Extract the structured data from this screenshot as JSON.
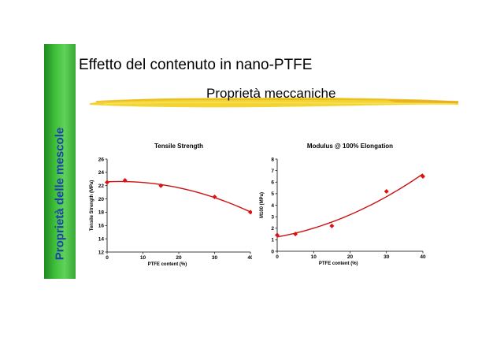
{
  "slide": {
    "title": "Effetto del contenuto in nano-PTFE",
    "section": "Proprietà meccaniche",
    "sidebar": "Proprietà delle mescole",
    "colors": {
      "sidebar_green": "#3fbf3a",
      "sidebar_text": "#1e3fae",
      "brush_yellow": "#f2d22a",
      "marker_red": "#e01010",
      "curve_red": "#cc1111"
    }
  },
  "chart_data": [
    {
      "type": "scatter",
      "title": "Tensile Strength",
      "xlabel": "PTFE content (%)",
      "ylabel": "Tensile Strength (MPa)",
      "xlim": [
        0,
        40
      ],
      "ylim": [
        12,
        26
      ],
      "xticks": [
        0,
        10,
        20,
        30,
        40
      ],
      "yticks": [
        12,
        14,
        16,
        18,
        20,
        22,
        24,
        26
      ],
      "grid": false,
      "points": [
        {
          "x": 0,
          "y": 22.5
        },
        {
          "x": 5,
          "y": 22.8
        },
        {
          "x": 15,
          "y": 22.0
        },
        {
          "x": 30,
          "y": 20.3
        },
        {
          "x": 40,
          "y": 18.0
        }
      ],
      "trend": {
        "kind": "polynomial-2",
        "color": "#cc1111"
      }
    },
    {
      "type": "scatter",
      "title": "Modulus @ 100% Elongation",
      "xlabel": "PTFE content (%)",
      "ylabel": "M100 (MPa)",
      "xlim": [
        0,
        40
      ],
      "ylim": [
        0,
        8
      ],
      "xticks": [
        0,
        10,
        20,
        30,
        40
      ],
      "yticks": [
        0,
        1,
        2,
        3,
        4,
        5,
        6,
        7,
        8
      ],
      "grid": false,
      "points": [
        {
          "x": 0,
          "y": 1.4
        },
        {
          "x": 5,
          "y": 1.5
        },
        {
          "x": 15,
          "y": 2.2
        },
        {
          "x": 30,
          "y": 5.2
        },
        {
          "x": 40,
          "y": 6.5
        }
      ],
      "trend": {
        "kind": "polynomial-2",
        "color": "#cc1111"
      }
    }
  ]
}
